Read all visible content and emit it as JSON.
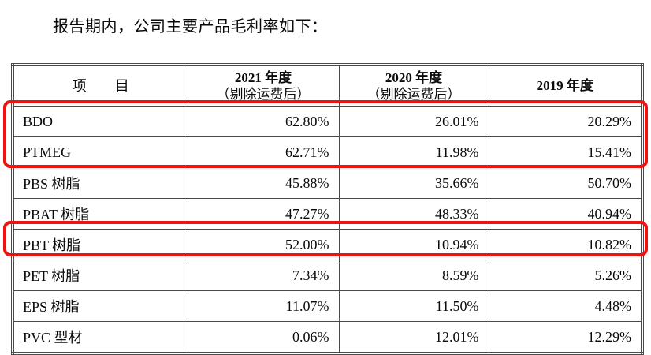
{
  "intro": {
    "text": "报告期内，公司主要产品毛利率如下："
  },
  "table": {
    "headers": [
      {
        "line1": "项　　目",
        "line2": ""
      },
      {
        "line1": "2021 年度",
        "line2": "（剔除运费后）"
      },
      {
        "line1": "2020 年度",
        "line2": "（剔除运费后）"
      },
      {
        "line1": "2019 年度",
        "line2": ""
      }
    ],
    "rows": [
      {
        "item": "BDO",
        "y2021": "62.80%",
        "y2020": "26.01%",
        "y2019": "20.29%"
      },
      {
        "item": "PTMEG",
        "y2021": "62.71%",
        "y2020": "11.98%",
        "y2019": "15.41%"
      },
      {
        "item": "PBS 树脂",
        "y2021": "45.88%",
        "y2020": "35.66%",
        "y2019": "50.70%"
      },
      {
        "item": "PBAT 树脂",
        "y2021": "47.27%",
        "y2020": "48.33%",
        "y2019": "40.94%"
      },
      {
        "item": "PBT 树脂",
        "y2021": "52.00%",
        "y2020": "10.94%",
        "y2019": "10.82%"
      },
      {
        "item": "PET 树脂",
        "y2021": "7.34%",
        "y2020": "8.59%",
        "y2019": "5.26%"
      },
      {
        "item": "EPS 树脂",
        "y2021": "11.07%",
        "y2020": "11.50%",
        "y2019": "4.48%"
      },
      {
        "item": "PVC 型材",
        "y2021": "0.06%",
        "y2020": "12.01%",
        "y2019": "12.29%"
      }
    ]
  },
  "annotations": {
    "highlight_color": "#ee1310",
    "boxes": [
      {
        "covers": "BDO, PTMEG"
      },
      {
        "covers": "PBT 树脂"
      }
    ]
  }
}
